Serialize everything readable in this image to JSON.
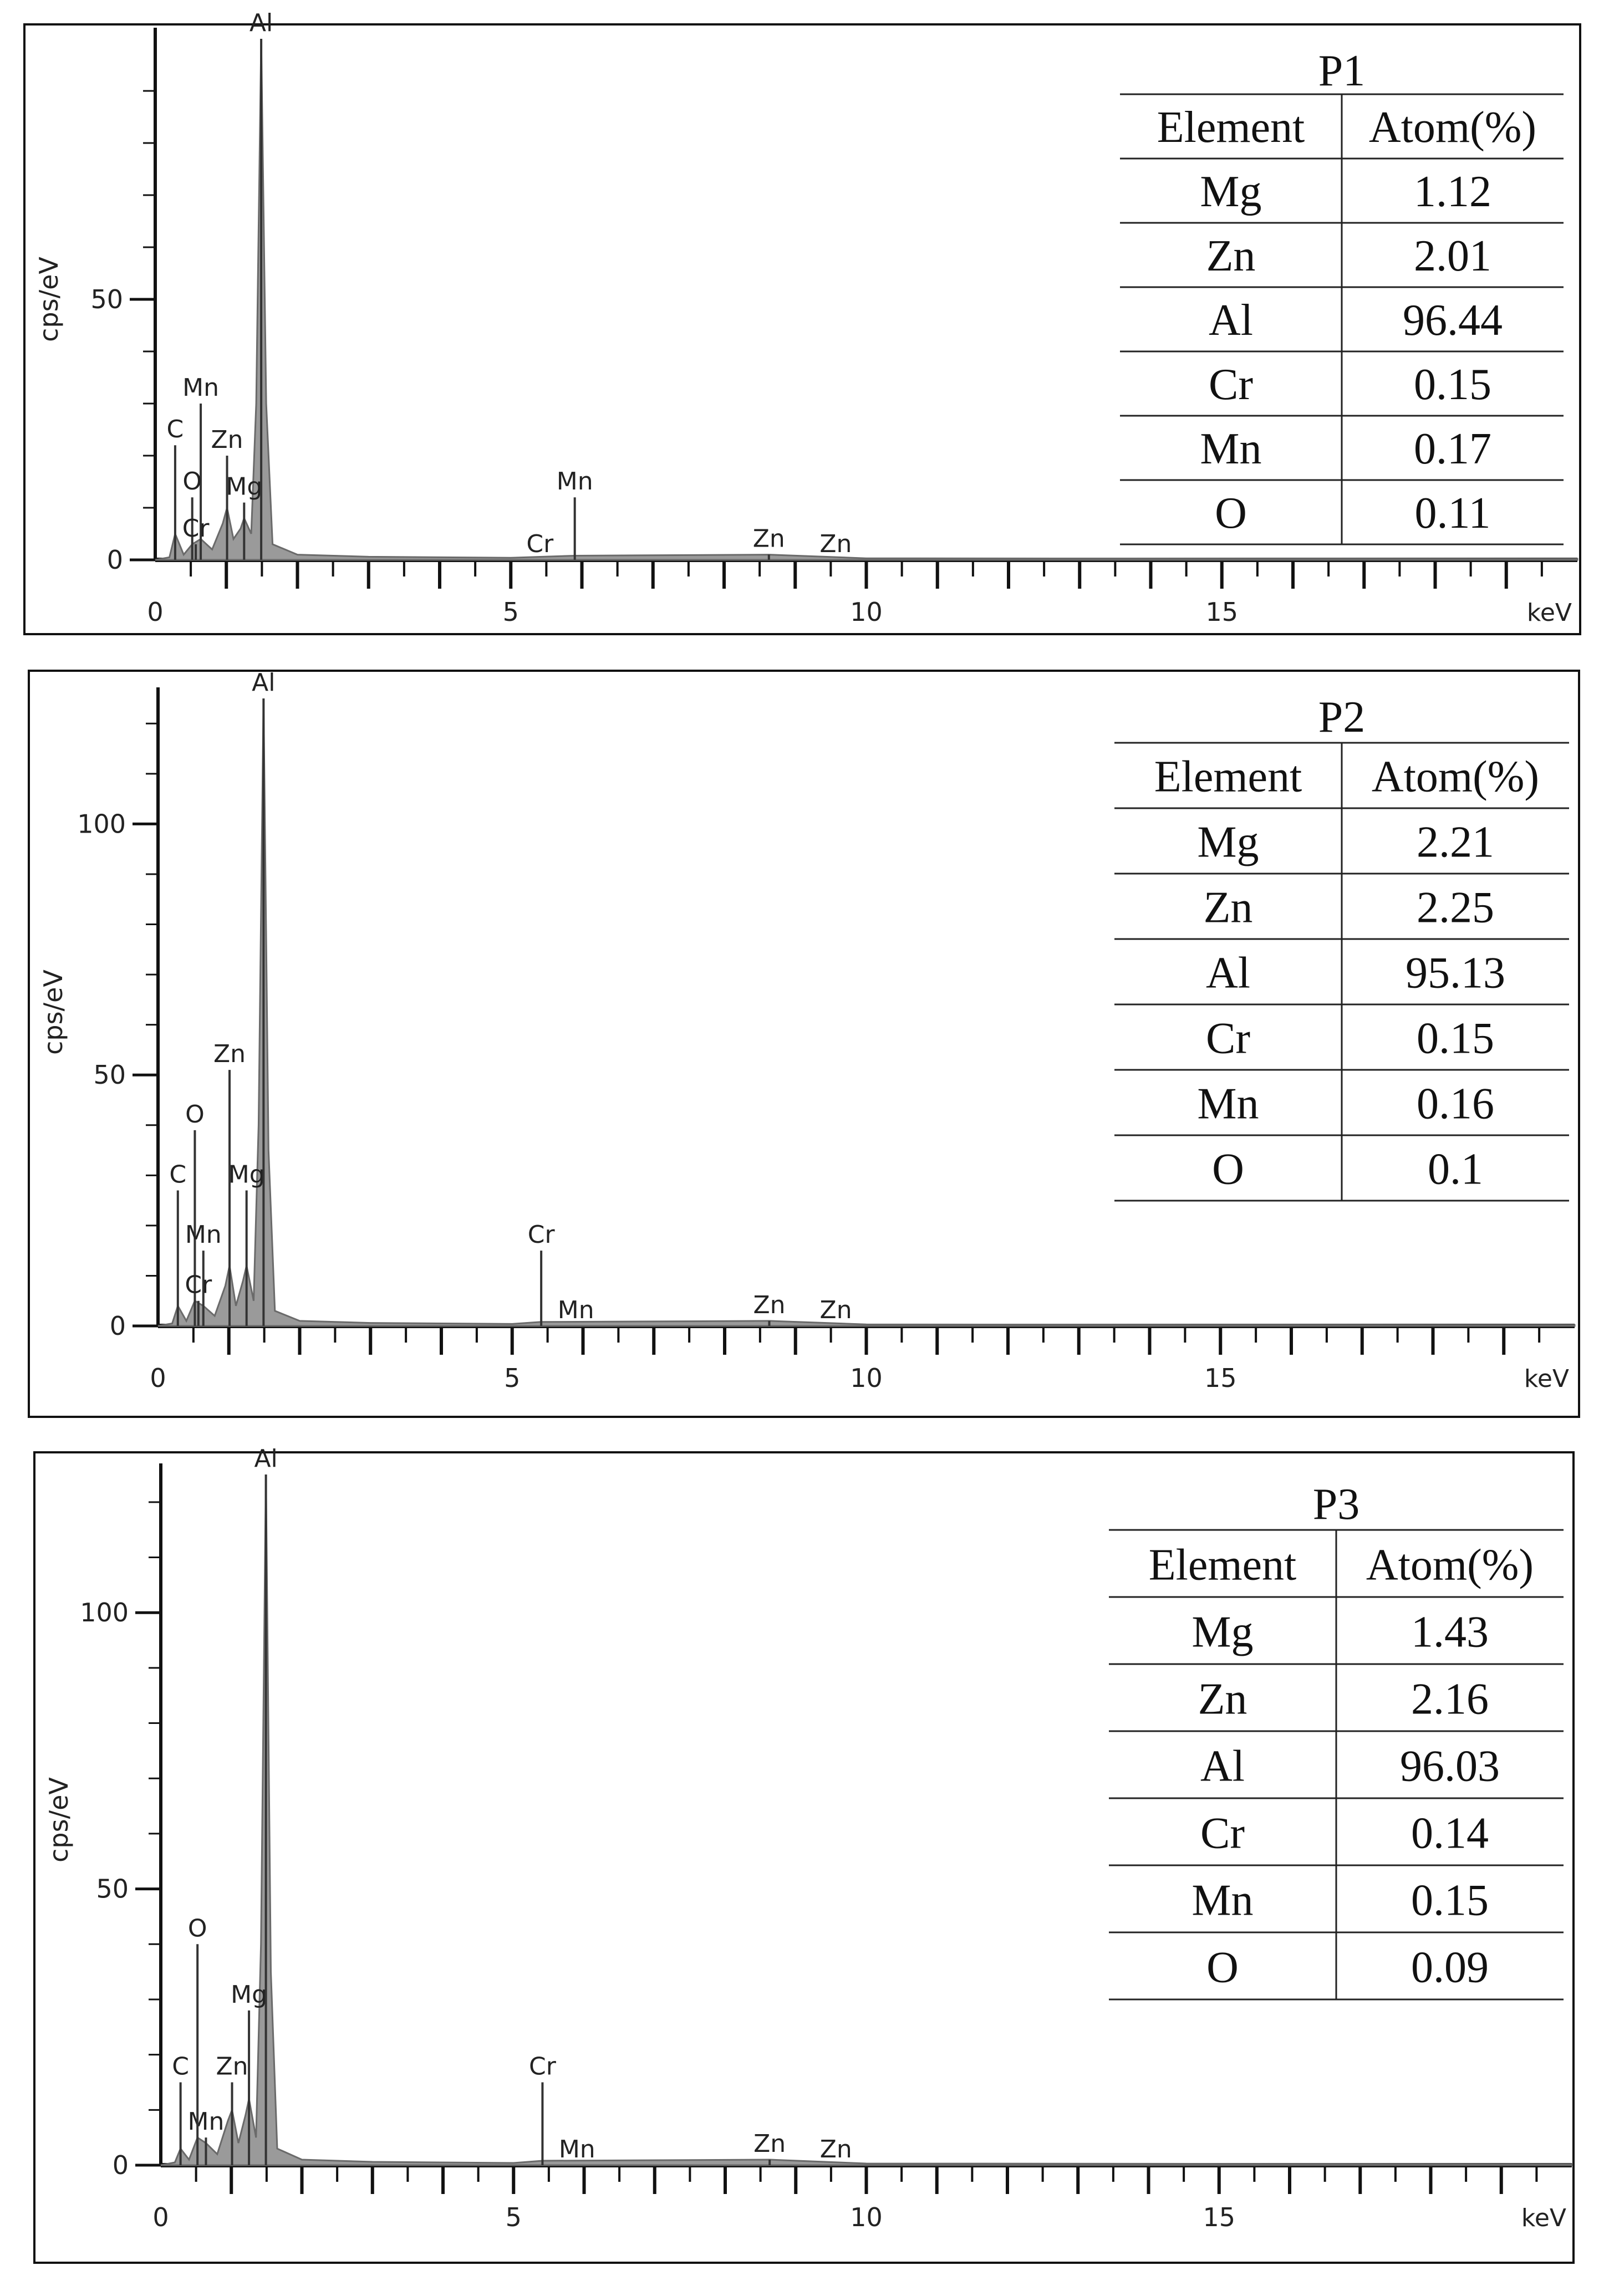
{
  "chart_data": [
    {
      "type": "line",
      "panel_label": "P1",
      "xlabel": "keV",
      "ylabel": "cps/eV",
      "xlim": [
        0,
        20
      ],
      "ylim": [
        0,
        100
      ],
      "x_ticks": [
        0,
        5,
        10,
        15
      ],
      "y_ticks": [
        0,
        50
      ],
      "peak_lines": [
        {
          "label": "C",
          "x": 0.28,
          "y": 22
        },
        {
          "label": "Mn",
          "x": 0.64,
          "y": 30
        },
        {
          "label": "O",
          "x": 0.52,
          "y": 12
        },
        {
          "label": "Cr",
          "x": 0.57,
          "y": 3
        },
        {
          "label": "Zn",
          "x": 1.01,
          "y": 20
        },
        {
          "label": "Mg",
          "x": 1.25,
          "y": 11
        },
        {
          "label": "Al",
          "x": 1.49,
          "y": 100
        },
        {
          "label": "Cr",
          "x": 5.41,
          "y": 0
        },
        {
          "label": "Mn",
          "x": 5.9,
          "y": 12
        },
        {
          "label": "Zn",
          "x": 8.63,
          "y": 1
        },
        {
          "label": "Zn",
          "x": 9.57,
          "y": 0
        }
      ],
      "spectrum": [
        [
          0,
          0
        ],
        [
          0.2,
          0.5
        ],
        [
          0.28,
          5
        ],
        [
          0.4,
          1
        ],
        [
          0.52,
          3
        ],
        [
          0.64,
          4
        ],
        [
          0.8,
          2
        ],
        [
          0.95,
          7
        ],
        [
          1.01,
          10
        ],
        [
          1.1,
          4
        ],
        [
          1.2,
          6
        ],
        [
          1.25,
          8
        ],
        [
          1.35,
          5
        ],
        [
          1.42,
          30
        ],
        [
          1.49,
          100
        ],
        [
          1.56,
          30
        ],
        [
          1.65,
          3
        ],
        [
          2.0,
          1
        ],
        [
          3,
          0.6
        ],
        [
          5,
          0.4
        ],
        [
          5.9,
          0.8
        ],
        [
          8.63,
          1
        ],
        [
          10,
          0.3
        ],
        [
          20,
          0.2
        ]
      ],
      "table": {
        "title": "P1",
        "headers": [
          "Element",
          "Atom(%)"
        ],
        "rows": [
          [
            "Mg",
            "1.12"
          ],
          [
            "Zn",
            "2.01"
          ],
          [
            "Al",
            "96.44"
          ],
          [
            "Cr",
            "0.15"
          ],
          [
            "Mn",
            "0.17"
          ],
          [
            "O",
            "0.11"
          ]
        ]
      }
    },
    {
      "type": "line",
      "panel_label": "P2",
      "xlabel": "keV",
      "ylabel": "cps/eV",
      "xlim": [
        0,
        20
      ],
      "ylim": [
        0,
        125
      ],
      "x_ticks": [
        0,
        5,
        10,
        15
      ],
      "y_ticks": [
        0,
        50,
        100
      ],
      "peak_lines": [
        {
          "label": "C",
          "x": 0.28,
          "y": 27
        },
        {
          "label": "O",
          "x": 0.52,
          "y": 39
        },
        {
          "label": "Mn",
          "x": 0.64,
          "y": 15
        },
        {
          "label": "Cr",
          "x": 0.57,
          "y": 5
        },
        {
          "label": "Zn",
          "x": 1.01,
          "y": 51
        },
        {
          "label": "Mg",
          "x": 1.25,
          "y": 27
        },
        {
          "label": "Al",
          "x": 1.49,
          "y": 125
        },
        {
          "label": "Cr",
          "x": 5.41,
          "y": 15
        },
        {
          "label": "Mn",
          "x": 5.9,
          "y": 0
        },
        {
          "label": "Zn",
          "x": 8.63,
          "y": 1
        },
        {
          "label": "Zn",
          "x": 9.57,
          "y": 0
        }
      ],
      "spectrum": [
        [
          0,
          0
        ],
        [
          0.2,
          0.5
        ],
        [
          0.28,
          4
        ],
        [
          0.4,
          1
        ],
        [
          0.52,
          5
        ],
        [
          0.64,
          4
        ],
        [
          0.8,
          2
        ],
        [
          0.95,
          8
        ],
        [
          1.01,
          12
        ],
        [
          1.1,
          4
        ],
        [
          1.2,
          9
        ],
        [
          1.25,
          12
        ],
        [
          1.35,
          5
        ],
        [
          1.42,
          40
        ],
        [
          1.49,
          125
        ],
        [
          1.56,
          35
        ],
        [
          1.65,
          3
        ],
        [
          2.0,
          1
        ],
        [
          3,
          0.6
        ],
        [
          5,
          0.4
        ],
        [
          5.41,
          0.8
        ],
        [
          8.63,
          1
        ],
        [
          10,
          0.3
        ],
        [
          20,
          0.2
        ]
      ],
      "table": {
        "title": "P2",
        "headers": [
          "Element",
          "Atom(%)"
        ],
        "rows": [
          [
            "Mg",
            "2.21"
          ],
          [
            "Zn",
            "2.25"
          ],
          [
            "Al",
            "95.13"
          ],
          [
            "Cr",
            "0.15"
          ],
          [
            "Mn",
            "0.16"
          ],
          [
            "O",
            "0.1"
          ]
        ]
      }
    },
    {
      "type": "line",
      "panel_label": "P3",
      "xlabel": "keV",
      "ylabel": "cps/eV",
      "xlim": [
        0,
        20
      ],
      "ylim": [
        0,
        125
      ],
      "x_ticks": [
        0,
        5,
        10,
        15
      ],
      "y_ticks": [
        0,
        50,
        100
      ],
      "peak_lines": [
        {
          "label": "C",
          "x": 0.28,
          "y": 15
        },
        {
          "label": "Mn",
          "x": 0.64,
          "y": 5
        },
        {
          "label": "O",
          "x": 0.52,
          "y": 40
        },
        {
          "label": "Zn",
          "x": 1.01,
          "y": 15
        },
        {
          "label": "Mg",
          "x": 1.25,
          "y": 28
        },
        {
          "label": "Al",
          "x": 1.49,
          "y": 125
        },
        {
          "label": "Cr",
          "x": 5.41,
          "y": 15
        },
        {
          "label": "Mn",
          "x": 5.9,
          "y": 0
        },
        {
          "label": "Zn",
          "x": 8.63,
          "y": 1
        },
        {
          "label": "Zn",
          "x": 9.57,
          "y": 0
        }
      ],
      "spectrum": [
        [
          0,
          0
        ],
        [
          0.2,
          0.5
        ],
        [
          0.28,
          3
        ],
        [
          0.4,
          1
        ],
        [
          0.52,
          5
        ],
        [
          0.64,
          4
        ],
        [
          0.8,
          2
        ],
        [
          0.95,
          8
        ],
        [
          1.01,
          10
        ],
        [
          1.1,
          4
        ],
        [
          1.2,
          9
        ],
        [
          1.25,
          12
        ],
        [
          1.35,
          5
        ],
        [
          1.42,
          40
        ],
        [
          1.49,
          125
        ],
        [
          1.56,
          35
        ],
        [
          1.65,
          3
        ],
        [
          2.0,
          1
        ],
        [
          3,
          0.6
        ],
        [
          5,
          0.4
        ],
        [
          5.41,
          0.8
        ],
        [
          8.63,
          1
        ],
        [
          10,
          0.3
        ],
        [
          20,
          0.2
        ]
      ],
      "table": {
        "title": "P3",
        "headers": [
          "Element",
          "Atom(%)"
        ],
        "rows": [
          [
            "Mg",
            "1.43"
          ],
          [
            "Zn",
            "2.16"
          ],
          [
            "Al",
            "96.03"
          ],
          [
            "Cr",
            "0.14"
          ],
          [
            "Mn",
            "0.15"
          ],
          [
            "O",
            "0.09"
          ]
        ]
      }
    }
  ]
}
